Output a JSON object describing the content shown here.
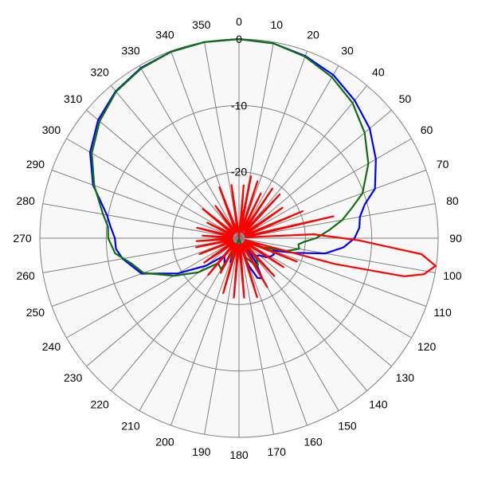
{
  "chart_data": {
    "type": "polar",
    "title": "",
    "angle_unit": "degrees",
    "angle_direction": "clockwise",
    "zero_angle_at": "top",
    "angle_ticks": [
      0,
      10,
      20,
      30,
      40,
      50,
      60,
      70,
      80,
      90,
      100,
      110,
      120,
      130,
      140,
      150,
      160,
      170,
      180,
      190,
      200,
      210,
      220,
      230,
      240,
      250,
      260,
      270,
      280,
      290,
      300,
      310,
      320,
      330,
      340,
      350
    ],
    "radial_range": [
      -30,
      0
    ],
    "radial_ticks": [
      0,
      -10,
      -20
    ],
    "grid": true,
    "colors": {
      "background": "#f8f8f8",
      "grid": "#808080",
      "blue": "#0000ff",
      "green": "#107010",
      "red": "#ff0000"
    },
    "series": [
      {
        "color": "blue",
        "points": [
          [
            0,
            0
          ],
          [
            10,
            -0.2
          ],
          [
            20,
            -0.8
          ],
          [
            30,
            -1.6
          ],
          [
            40,
            -2.9
          ],
          [
            50,
            -4.3
          ],
          [
            60,
            -6.2
          ],
          [
            70,
            -8.2
          ],
          [
            75,
            -10.4
          ],
          [
            80,
            -11.5
          ],
          [
            85,
            -11.8
          ],
          [
            90,
            -12.6
          ],
          [
            95,
            -14.2
          ],
          [
            100,
            -16.8
          ],
          [
            105,
            -21.5
          ],
          [
            110,
            -24.6
          ],
          [
            115,
            -24.2
          ],
          [
            120,
            -24.5
          ],
          [
            125,
            -25.0
          ],
          [
            130,
            -26.0
          ],
          [
            135,
            -26.2
          ],
          [
            140,
            -28.2
          ],
          [
            145,
            -25.6
          ],
          [
            150,
            -23.0
          ],
          [
            155,
            -23.4
          ],
          [
            160,
            -25.5
          ],
          [
            165,
            -27.6
          ],
          [
            170,
            -29.8
          ],
          [
            180,
            -29.8
          ],
          [
            190,
            -29.8
          ],
          [
            200,
            -26.2
          ],
          [
            205,
            -27.8
          ],
          [
            210,
            -25.6
          ],
          [
            220,
            -26.6
          ],
          [
            230,
            -23.6
          ],
          [
            240,
            -19.4
          ],
          [
            250,
            -14.4
          ],
          [
            260,
            -12.2
          ],
          [
            265,
            -11.4
          ],
          [
            270,
            -11.3
          ],
          [
            275,
            -10.6
          ],
          [
            280,
            -9.8
          ],
          [
            290,
            -6.6
          ],
          [
            300,
            -4.1
          ],
          [
            310,
            -2.3
          ],
          [
            320,
            -1.1
          ],
          [
            330,
            -0.4
          ],
          [
            340,
            -0.1
          ],
          [
            350,
            0
          ],
          [
            360,
            0
          ]
        ]
      },
      {
        "color": "green",
        "points": [
          [
            0,
            0
          ],
          [
            10,
            -0.2
          ],
          [
            20,
            -0.9
          ],
          [
            30,
            -2.0
          ],
          [
            40,
            -3.4
          ],
          [
            50,
            -5.3
          ],
          [
            60,
            -7.5
          ],
          [
            70,
            -10.2
          ],
          [
            75,
            -12.4
          ],
          [
            80,
            -14.2
          ],
          [
            85,
            -16.4
          ],
          [
            90,
            -18.4
          ],
          [
            93,
            -20.1
          ],
          [
            96,
            -21.0
          ],
          [
            100,
            -20.8
          ],
          [
            105,
            -22.6
          ],
          [
            110,
            -26.0
          ],
          [
            120,
            -28.4
          ],
          [
            130,
            -28.9
          ],
          [
            140,
            -25.9
          ],
          [
            145,
            -25.0
          ],
          [
            150,
            -25.4
          ],
          [
            160,
            -26.9
          ],
          [
            170,
            -29.5
          ],
          [
            180,
            -29.8
          ],
          [
            190,
            -29.8
          ],
          [
            200,
            -26.7
          ],
          [
            205,
            -28.0
          ],
          [
            210,
            -24.6
          ],
          [
            220,
            -25.1
          ],
          [
            230,
            -22.0
          ],
          [
            240,
            -18.7
          ],
          [
            250,
            -14.7
          ],
          [
            257,
            -13.3
          ],
          [
            263,
            -11.2
          ],
          [
            270,
            -10.3
          ],
          [
            275,
            -10.2
          ],
          [
            280,
            -9.2
          ],
          [
            290,
            -6.8
          ],
          [
            300,
            -4.4
          ],
          [
            310,
            -2.6
          ],
          [
            320,
            -1.2
          ],
          [
            330,
            -0.5
          ],
          [
            340,
            -0.1
          ],
          [
            350,
            0
          ],
          [
            360,
            0
          ]
        ]
      },
      {
        "color": "red",
        "points": [
          [
            0,
            -30
          ],
          [
            5,
            -22.0
          ],
          [
            8,
            -28.0
          ],
          [
            11,
            -20.5
          ],
          [
            14,
            -29.0
          ],
          [
            18,
            -21.0
          ],
          [
            22,
            -29.0
          ],
          [
            26,
            -22.5
          ],
          [
            30,
            -29.0
          ],
          [
            34,
            -21.0
          ],
          [
            38,
            -28.5
          ],
          [
            43,
            -21.0
          ],
          [
            48,
            -29.0
          ],
          [
            55,
            -22.0
          ],
          [
            61,
            -29.0
          ],
          [
            67,
            -19.6
          ],
          [
            72,
            -29.0
          ],
          [
            77,
            -15.4
          ],
          [
            82,
            -29.0
          ],
          [
            87,
            -18.7
          ],
          [
            91,
            -12.0
          ],
          [
            95,
            -2.4
          ],
          [
            98,
            -0.1
          ],
          [
            101,
            -1.6
          ],
          [
            103,
            -4.5
          ],
          [
            105,
            -15.0
          ],
          [
            107,
            -29.0
          ],
          [
            112,
            -20.6
          ],
          [
            117,
            -29.0
          ],
          [
            123,
            -22.0
          ],
          [
            130,
            -29.0
          ],
          [
            137,
            -22.2
          ],
          [
            143,
            -29.0
          ],
          [
            150,
            -21.5
          ],
          [
            157,
            -29.0
          ],
          [
            163,
            -20.7
          ],
          [
            168,
            -29.0
          ],
          [
            175,
            -21.0
          ],
          [
            180,
            -29.0
          ],
          [
            185,
            -21.0
          ],
          [
            190,
            -29.0
          ],
          [
            196,
            -21.4
          ],
          [
            202,
            -29.0
          ],
          [
            208,
            -24.1
          ],
          [
            214,
            -29.0
          ],
          [
            220,
            -22.8
          ],
          [
            226,
            -29.0
          ],
          [
            235,
            -23.6
          ],
          [
            241,
            -29.0
          ],
          [
            248,
            -23.6
          ],
          [
            253,
            -29.0
          ],
          [
            258,
            -23.4
          ],
          [
            262,
            -29.0
          ],
          [
            266,
            -23.6
          ],
          [
            270,
            -29.0
          ],
          [
            274,
            -24.5
          ],
          [
            279,
            -29.0
          ],
          [
            284,
            -23.5
          ],
          [
            290,
            -29.0
          ],
          [
            296,
            -24.7
          ],
          [
            302,
            -29.0
          ],
          [
            309,
            -23.0
          ],
          [
            316,
            -29.0
          ],
          [
            324,
            -24.0
          ],
          [
            331,
            -29.0
          ],
          [
            339,
            -21.8
          ],
          [
            346,
            -29.0
          ],
          [
            352,
            -21.9
          ],
          [
            356,
            -29.0
          ],
          [
            360,
            -30
          ]
        ]
      }
    ]
  }
}
